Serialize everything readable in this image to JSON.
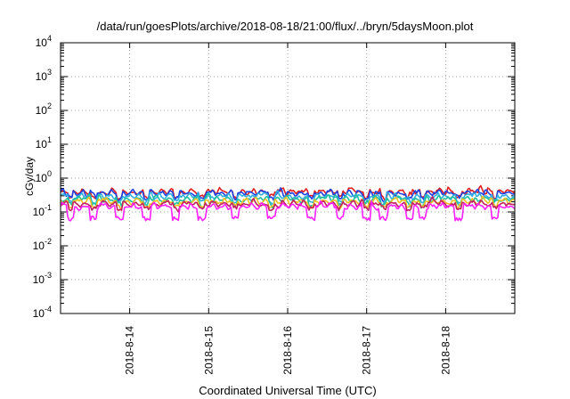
{
  "chart_data": {
    "type": "line",
    "title": "/data/run/goesPlots/archive/2018-08-18/21:00/flux/../bryn/5daysMoon.plot",
    "xlabel": "Coordinated Universal Time (UTC)",
    "ylabel": "cGy/day",
    "yscale": "log",
    "ylim": [
      0.0001,
      10000
    ],
    "yticks": [
      {
        "value": 0.0001,
        "base": "10",
        "exp": "-4"
      },
      {
        "value": 0.001,
        "base": "10",
        "exp": "-3"
      },
      {
        "value": 0.01,
        "base": "10",
        "exp": "-2"
      },
      {
        "value": 0.1,
        "base": "10",
        "exp": "-1"
      },
      {
        "value": 1,
        "base": "10",
        "exp": "0"
      },
      {
        "value": 10,
        "base": "10",
        "exp": "1"
      },
      {
        "value": 100,
        "base": "10",
        "exp": "2"
      },
      {
        "value": 1000,
        "base": "10",
        "exp": "3"
      },
      {
        "value": 10000,
        "base": "10",
        "exp": "4"
      }
    ],
    "xlim": [
      "2018-08-13 03:00",
      "2018-08-18 21:00"
    ],
    "xticks": [
      {
        "value": "2018-08-14 00:00",
        "label": "2018-8-14"
      },
      {
        "value": "2018-08-15 00:00",
        "label": "2018-8-15"
      },
      {
        "value": "2018-08-16 00:00",
        "label": "2018-8-16"
      },
      {
        "value": "2018-08-17 00:00",
        "label": "2018-8-17"
      },
      {
        "value": "2018-08-18 00:00",
        "label": "2018-8-18"
      }
    ],
    "grid": true,
    "legend": "none",
    "series": [
      {
        "color": "#e02020",
        "baseline": 0.38,
        "dips": false
      },
      {
        "color": "#2040e0",
        "baseline": 0.35,
        "dips": false
      },
      {
        "color": "#30b0e0",
        "baseline": 0.28,
        "dips": false
      },
      {
        "color": "#20c0a0",
        "baseline": 0.23,
        "dips": false
      },
      {
        "color": "#f0c020",
        "baseline": 0.2,
        "dips": false
      },
      {
        "color": "#c02060",
        "baseline": 0.17,
        "dips": false
      },
      {
        "color": "#ff20ff",
        "baseline": 0.14,
        "dips": true
      }
    ],
    "dip_times": [
      "2018-08-13 06:00",
      "2018-08-13 13:00",
      "2018-08-13 21:00",
      "2018-08-14 05:00",
      "2018-08-14 14:00",
      "2018-08-14 22:00",
      "2018-08-15 08:00",
      "2018-08-15 19:00",
      "2018-08-16 07:00",
      "2018-08-16 16:00",
      "2018-08-17 00:00",
      "2018-08-17 05:00",
      "2018-08-17 13:00",
      "2018-08-17 17:00",
      "2018-08-18 04:00",
      "2018-08-18 15:00"
    ]
  }
}
